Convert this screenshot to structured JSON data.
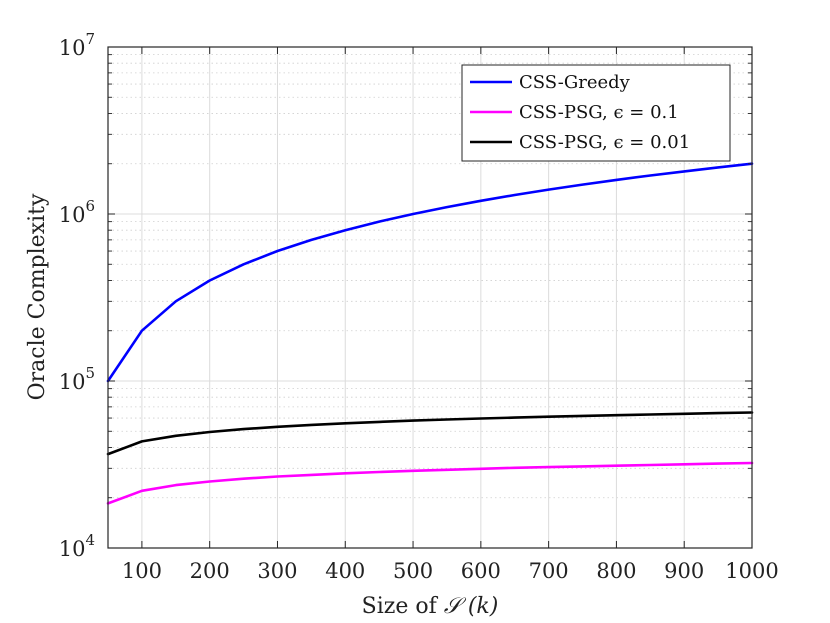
{
  "chart_data": {
    "type": "line",
    "title": "",
    "xlabel": "Size of",
    "xlabel_symbol": "𝒮",
    "xlabel_unit": "(k)",
    "ylabel": "Oracle Complexity",
    "yscale": "log",
    "xlim": [
      50,
      1000
    ],
    "ylim": [
      10000,
      10000000
    ],
    "grid": true,
    "minor_grid": true,
    "legend_position": "top-right",
    "xticks": [
      100,
      200,
      300,
      400,
      500,
      600,
      700,
      800,
      900,
      1000
    ],
    "xtick_labels": [
      "100",
      "200",
      "300",
      "400",
      "500",
      "600",
      "700",
      "800",
      "900",
      "1000"
    ],
    "yticks": [
      {
        "value": 10000,
        "base": "10",
        "exp": "4"
      },
      {
        "value": 100000,
        "base": "10",
        "exp": "5"
      },
      {
        "value": 1000000,
        "base": "10",
        "exp": "6"
      },
      {
        "value": 10000000,
        "base": "10",
        "exp": "7"
      }
    ],
    "x": [
      50,
      100,
      150,
      200,
      250,
      300,
      350,
      400,
      450,
      500,
      550,
      600,
      650,
      700,
      750,
      800,
      850,
      900,
      950,
      1000
    ],
    "series": [
      {
        "name": "CSS-Greedy",
        "color": "#0000ff",
        "values": [
          100000,
          200000,
          300000,
          400000,
          500000,
          600000,
          700000,
          800000,
          900000,
          1000000,
          1100000,
          1200000,
          1300000,
          1400000,
          1500000,
          1600000,
          1700000,
          1800000,
          1900000,
          2000000
        ]
      },
      {
        "name": "CSS-PSG, ϵ = 0.1",
        "color": "#ff00ff",
        "values": [
          18500,
          22000,
          23800,
          25000,
          26000,
          26800,
          27400,
          28000,
          28500,
          29000,
          29400,
          29800,
          30200,
          30500,
          30800,
          31100,
          31400,
          31700,
          32000,
          32300
        ]
      },
      {
        "name": "CSS-PSG, ϵ = 0.01",
        "color": "#000000",
        "values": [
          36500,
          43500,
          47000,
          49500,
          51500,
          53200,
          54600,
          55800,
          56900,
          57900,
          58800,
          59600,
          60400,
          61100,
          61800,
          62400,
          63000,
          63600,
          64200,
          64800
        ]
      }
    ]
  }
}
